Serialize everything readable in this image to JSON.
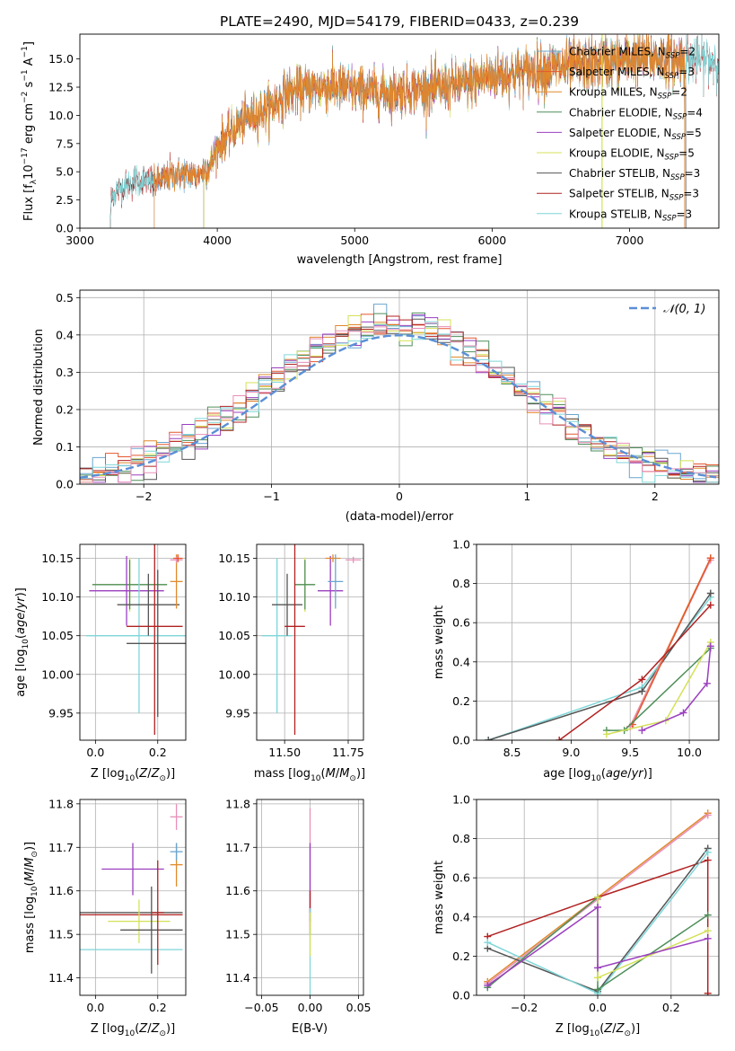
{
  "title": "PLATE=2490, MJD=54179, FIBERID=0433, z=0.239",
  "colors": {
    "Chabrier MILES": "#6aa5cf",
    "Salpeter MILES": "#e4572e",
    "Kroupa MILES": "#e08a2c",
    "Chabrier ELODIE": "#4f8f5a",
    "Salpeter ELODIE": "#9b3fbf",
    "Kroupa ELODIE": "#d4e157",
    "Chabrier STELIB": "#555555",
    "Salpeter STELIB": "#b22222",
    "Kroupa STELIB": "#7fd6d8",
    "extra_pink": "#e88fb8",
    "gauss": "#5b8fd6"
  },
  "chart_data": [
    {
      "id": "spectrum",
      "type": "line",
      "title": "PLATE=2490, MJD=54179, FIBERID=0433, z=0.239",
      "xlabel": "wavelength [Angstrom, rest frame]",
      "ylabel": "Flux [f_λ 10^-17 erg cm^-2 s^-1 A^-1]",
      "xlim": [
        3000,
        7650
      ],
      "ylim": [
        0,
        17.2
      ],
      "xticks": [
        3000,
        4000,
        5000,
        6000,
        7000
      ],
      "yticks": [
        0.0,
        2.5,
        5.0,
        7.5,
        10.0,
        12.5,
        15.0
      ],
      "grid": false,
      "legend_position": "top-right",
      "legend": [
        {
          "name": "Chabrier MILES, N",
          "sub": "SSP",
          "post": "=2"
        },
        {
          "name": "Salpeter MILES, N",
          "sub": "SSP",
          "post": "=3"
        },
        {
          "name": "Kroupa MILES, N",
          "sub": "SSP",
          "post": "=2"
        },
        {
          "name": "Chabrier ELODIE, N",
          "sub": "SSP",
          "post": "=4"
        },
        {
          "name": "Salpeter ELODIE, N",
          "sub": "SSP",
          "post": "=5"
        },
        {
          "name": "Kroupa ELODIE, N",
          "sub": "SSP",
          "post": "=5"
        },
        {
          "name": "Chabrier STELIB, N",
          "sub": "SSP",
          "post": "=3"
        },
        {
          "name": "Salpeter STELIB, N",
          "sub": "SSP",
          "post": "=3"
        },
        {
          "name": "Kroupa STELIB, N",
          "sub": "SSP",
          "post": "=3"
        }
      ],
      "continuum": [
        [
          3220,
          0
        ],
        [
          3230,
          2.7
        ],
        [
          3300,
          3.5
        ],
        [
          3400,
          4.2
        ],
        [
          3550,
          4.1
        ],
        [
          3700,
          4.8
        ],
        [
          3850,
          4.7
        ],
        [
          3950,
          5.5
        ],
        [
          4000,
          7.2
        ],
        [
          4100,
          8.5
        ],
        [
          4200,
          9.6
        ],
        [
          4300,
          10.2
        ],
        [
          4400,
          10.8
        ],
        [
          4500,
          11.9
        ],
        [
          4600,
          12.2
        ],
        [
          4800,
          12.6
        ],
        [
          5000,
          12.3
        ],
        [
          5200,
          12.0
        ],
        [
          5400,
          12.3
        ],
        [
          5600,
          12.4
        ],
        [
          5800,
          12.8
        ],
        [
          6000,
          13.5
        ],
        [
          6200,
          13.8
        ],
        [
          6400,
          14.1
        ],
        [
          6600,
          14.4
        ],
        [
          6800,
          14.6
        ],
        [
          7000,
          15.0
        ],
        [
          7200,
          15.1
        ],
        [
          7400,
          14.9
        ],
        [
          7650,
          15.0
        ]
      ],
      "wavelength_start": {
        "Chabrier MILES": 3540,
        "Salpeter MILES": 3540,
        "Kroupa MILES": 3540,
        "Chabrier ELODIE": 3900,
        "Salpeter ELODIE": 3900,
        "Kroupa ELODIE": 3900,
        "Chabrier STELIB": 3220,
        "Salpeter STELIB": 3220,
        "Kroupa STELIB": 3220
      },
      "model_drop_at": 7400
    },
    {
      "id": "residuals",
      "type": "line",
      "xlabel": "(data-model)/error",
      "ylabel": "Normed distribution",
      "xlim": [
        -2.5,
        2.5
      ],
      "ylim": [
        0,
        0.52
      ],
      "xticks": [
        -2,
        -1,
        0,
        1,
        2
      ],
      "yticks": [
        0.0,
        0.1,
        0.2,
        0.3,
        0.4,
        0.5
      ],
      "grid": true,
      "legend_position": "top-right",
      "legend": [
        "𝒩(0, 1)"
      ],
      "bin_width": 0.1,
      "gauss_curve": {
        "name": "𝒩(0, 1)",
        "mean": 0,
        "sigma": 1
      }
    },
    {
      "id": "age_vs_Z",
      "type": "scatter",
      "xlabel": "Z [log10(Z/Z⊙)]",
      "ylabel": "age [log10(age/yr)]",
      "xlim": [
        -0.05,
        0.29
      ],
      "ylim": [
        9.915,
        10.168
      ],
      "xticks": [
        0.0,
        0.2
      ],
      "yticks": [
        9.95,
        10.0,
        10.05,
        10.1,
        10.15
      ],
      "grid": true,
      "points": [
        {
          "x": 0.11,
          "xerr": 0.12,
          "y": 10.116,
          "yerr": 0.035,
          "color": "#d4e157"
        },
        {
          "x": 0.11,
          "xerr": 0.12,
          "y": 10.116,
          "yerr": 0.032,
          "color": "#4f8f5a"
        },
        {
          "x": 0.1,
          "xerr": 0.12,
          "y": 10.108,
          "yerr": 0.045,
          "color": "#9b3fbf"
        },
        {
          "x": 0.14,
          "xerr": 0.17,
          "y": 10.05,
          "yerr": 0.1,
          "color": "#7fd6d8"
        },
        {
          "x": 0.17,
          "xerr": 0.1,
          "y": 10.09,
          "yerr": 0.04,
          "color": "#555555"
        },
        {
          "x": 0.2,
          "xerr": 0.1,
          "y": 10.04,
          "yerr": 0.095,
          "color": "#555555"
        },
        {
          "x": 0.19,
          "xerr": 0.09,
          "y": 10.062,
          "yerr": 0.14,
          "color": "#b22222"
        },
        {
          "x": 0.26,
          "xerr": 0.02,
          "y": 10.12,
          "yerr": 0.035,
          "color": "#e08a2c"
        },
        {
          "x": 0.26,
          "xerr": 0.02,
          "y": 10.148,
          "yerr": 0.004,
          "color": "#e88fb8"
        },
        {
          "x": 0.265,
          "xerr": 0.015,
          "y": 10.15,
          "yerr": 0.005,
          "color": "#e4572e"
        }
      ]
    },
    {
      "id": "age_vs_mass",
      "type": "scatter",
      "xlabel": "mass [log10(M/M⊙)]",
      "xlim": [
        11.39,
        11.81
      ],
      "ylim": [
        9.915,
        10.168
      ],
      "xticks": [
        11.5,
        11.75
      ],
      "yticks": [
        9.95,
        10.0,
        10.05,
        10.1,
        10.15
      ],
      "grid": true,
      "points": [
        {
          "x": 11.58,
          "xerr": 0.04,
          "y": 10.116,
          "yerr": 0.035,
          "color": "#d4e157"
        },
        {
          "x": 11.58,
          "xerr": 0.04,
          "y": 10.116,
          "yerr": 0.032,
          "color": "#4f8f5a"
        },
        {
          "x": 11.68,
          "xerr": 0.05,
          "y": 10.108,
          "yerr": 0.045,
          "color": "#9b3fbf"
        },
        {
          "x": 11.47,
          "xerr": 0.06,
          "y": 10.05,
          "yerr": 0.1,
          "color": "#7fd6d8"
        },
        {
          "x": 11.51,
          "xerr": 0.06,
          "y": 10.09,
          "yerr": 0.04,
          "color": "#555555"
        },
        {
          "x": 11.54,
          "xerr": 0.04,
          "y": 10.062,
          "yerr": 0.14,
          "color": "#b22222"
        },
        {
          "x": 11.69,
          "xerr": 0.03,
          "y": 10.15,
          "yerr": 0.005,
          "color": "#e08a2c"
        },
        {
          "x": 11.7,
          "xerr": 0.03,
          "y": 10.12,
          "yerr": 0.035,
          "color": "#6aa5cf"
        },
        {
          "x": 11.77,
          "xerr": 0.03,
          "y": 10.148,
          "yerr": 0.004,
          "color": "#e88fb8"
        }
      ]
    },
    {
      "id": "weight_vs_age",
      "type": "line",
      "xlabel": "age [log10(age/yr)]",
      "ylabel": "mass weight",
      "xlim": [
        8.2,
        10.25
      ],
      "ylim": [
        0,
        1
      ],
      "xticks": [
        8.5,
        9.0,
        9.5,
        10.0
      ],
      "yticks": [
        0.0,
        0.2,
        0.4,
        0.6,
        0.8,
        1.0
      ],
      "grid": true,
      "series": [
        {
          "color": "#7fd6d8",
          "x": [
            8.3,
            9.6,
            10.18
          ],
          "y": [
            0.0,
            0.27,
            0.73
          ]
        },
        {
          "color": "#555555",
          "x": [
            8.3,
            9.6,
            10.18
          ],
          "y": [
            0.0,
            0.25,
            0.75
          ]
        },
        {
          "color": "#e08a2c",
          "x": [
            9.5,
            10.18
          ],
          "y": [
            0.07,
            0.93
          ]
        },
        {
          "color": "#e88fb8",
          "x": [
            9.5,
            10.18
          ],
          "y": [
            0.07,
            0.92
          ]
        },
        {
          "color": "#e4572e",
          "x": [
            9.52,
            10.18
          ],
          "y": [
            0.08,
            0.93
          ]
        },
        {
          "color": "#b22222",
          "x": [
            8.9,
            9.6,
            10.18
          ],
          "y": [
            0.0,
            0.31,
            0.69
          ]
        },
        {
          "color": "#4f8f5a",
          "x": [
            9.3,
            9.45,
            10.18
          ],
          "y": [
            0.05,
            0.05,
            0.47
          ]
        },
        {
          "color": "#d4e157",
          "x": [
            9.3,
            9.8,
            10.18
          ],
          "y": [
            0.03,
            0.1,
            0.5
          ]
        },
        {
          "color": "#9b3fbf",
          "x": [
            9.6,
            9.95,
            10.15,
            10.18
          ],
          "y": [
            0.05,
            0.14,
            0.29,
            0.48
          ]
        }
      ]
    },
    {
      "id": "mass_vs_Z",
      "type": "scatter",
      "xlabel": "Z [log10(Z/Z⊙)]",
      "ylabel": "mass [log10(M/M⊙)]",
      "xlim": [
        -0.05,
        0.29
      ],
      "ylim": [
        11.36,
        11.81
      ],
      "xticks": [
        0.0,
        0.2
      ],
      "yticks": [
        11.4,
        11.5,
        11.6,
        11.7,
        11.8
      ],
      "grid": true,
      "points": [
        {
          "x": 0.11,
          "xerr": 0.17,
          "y": 11.55,
          "yerr": 0.0,
          "color": "#555555"
        },
        {
          "x": 0.11,
          "xerr": 0.17,
          "y": 11.545,
          "yerr": 0.0,
          "color": "#b22222"
        },
        {
          "x": 0.09,
          "xerr": 0.19,
          "y": 11.465,
          "yerr": 0.0,
          "color": "#7fd6d8"
        },
        {
          "x": 0.14,
          "xerr": 0.1,
          "y": 11.53,
          "yerr": 0.05,
          "color": "#d4e157"
        },
        {
          "x": 0.12,
          "xerr": 0.1,
          "y": 11.65,
          "yerr": 0.06,
          "color": "#9b3fbf"
        },
        {
          "x": 0.18,
          "xerr": 0.1,
          "y": 11.51,
          "yerr": 0.1,
          "color": "#555555"
        },
        {
          "x": 0.2,
          "xerr": 0.02,
          "y": 11.55,
          "yerr": 0.12,
          "color": "#b22222"
        },
        {
          "x": 0.26,
          "xerr": 0.02,
          "y": 11.66,
          "yerr": 0.05,
          "color": "#e08a2c"
        },
        {
          "x": 0.26,
          "xerr": 0.02,
          "y": 11.69,
          "yerr": 0.02,
          "color": "#6aa5cf"
        },
        {
          "x": 0.26,
          "xerr": 0.02,
          "y": 11.77,
          "yerr": 0.03,
          "color": "#e88fb8"
        }
      ]
    },
    {
      "id": "mass_vs_ebv",
      "type": "scatter",
      "xlabel": "E(B-V)",
      "xlim": [
        -0.055,
        0.055
      ],
      "ylim": [
        11.36,
        11.81
      ],
      "xticks": [
        -0.05,
        0.0,
        0.05
      ],
      "yticks": [
        11.4,
        11.5,
        11.6,
        11.7,
        11.8
      ],
      "grid": true,
      "points": [
        {
          "x": 0.0,
          "y": 11.65,
          "yerr": 0.14,
          "color": "#e88fb8"
        },
        {
          "x": 0.0,
          "y": 11.62,
          "yerr": 0.09,
          "color": "#9b3fbf"
        },
        {
          "x": 0.0,
          "y": 11.55,
          "yerr": 0.05,
          "color": "#b22222"
        },
        {
          "x": 0.0,
          "y": 11.46,
          "yerr": 0.1,
          "color": "#7fd6d8"
        },
        {
          "x": 0.0,
          "y": 11.5,
          "yerr": 0.05,
          "color": "#d4e157"
        }
      ]
    },
    {
      "id": "weight_vs_Z",
      "type": "line",
      "xlabel": "Z [log10(Z/Z⊙)]",
      "ylabel": "mass weight",
      "xlim": [
        -0.33,
        0.33
      ],
      "ylim": [
        0,
        1
      ],
      "xticks": [
        -0.2,
        0.0,
        0.2
      ],
      "yticks": [
        0.0,
        0.2,
        0.4,
        0.6,
        0.8,
        1.0
      ],
      "grid": true,
      "series": [
        {
          "color": "#e08a2c",
          "x": [
            -0.3,
            0.0,
            0.3
          ],
          "y": [
            0.07,
            0.5,
            0.93
          ]
        },
        {
          "color": "#e88fb8",
          "x": [
            -0.3,
            0.0,
            0.3
          ],
          "y": [
            0.06,
            0.49,
            0.92
          ]
        },
        {
          "color": "#b22222",
          "x": [
            -0.3,
            0.0,
            0.3,
            0.3
          ],
          "y": [
            0.3,
            0.5,
            0.69,
            0.01
          ]
        },
        {
          "color": "#555555",
          "x": [
            -0.3,
            0.0,
            0.3
          ],
          "y": [
            0.24,
            0.02,
            0.75
          ]
        },
        {
          "color": "#7fd6d8",
          "x": [
            -0.3,
            0.0,
            0.3
          ],
          "y": [
            0.27,
            0.01,
            0.73
          ]
        },
        {
          "color": "#4f8f5a",
          "x": [
            -0.3,
            0.0,
            0.0,
            0.3
          ],
          "y": [
            0.04,
            0.5,
            0.03,
            0.41
          ]
        },
        {
          "color": "#d4e157",
          "x": [
            0.0,
            0.0,
            0.3
          ],
          "y": [
            0.5,
            0.09,
            0.33
          ]
        },
        {
          "color": "#9b3fbf",
          "x": [
            -0.3,
            0.0,
            0.0,
            0.3
          ],
          "y": [
            0.05,
            0.45,
            0.14,
            0.29
          ]
        }
      ]
    }
  ]
}
